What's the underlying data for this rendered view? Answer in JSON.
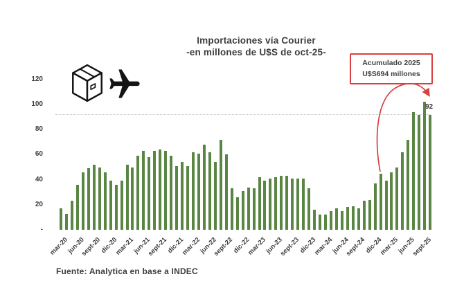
{
  "title": {
    "line1": "Importaciones vía Courier",
    "line2": "-en millones de U$S de oct-25-"
  },
  "annotation_box": {
    "line1": "Acumulado 2025",
    "line2": "U$S694 millones"
  },
  "bar_value_label": "92",
  "source": "Fuente: Analytica en base a INDEC",
  "icons": [
    "package-box-icon",
    "airplane-icon"
  ],
  "colors": {
    "bar": "#5a8644",
    "annotation_red": "#d64040",
    "text_dark": "#3d3d3d",
    "reference_line": "#c4c4c4"
  },
  "y_axis": {
    "labels": [
      "120",
      "100",
      "80",
      "60",
      "40",
      "20",
      "-"
    ],
    "values": [
      120,
      100,
      80,
      60,
      40,
      20,
      0
    ]
  },
  "chart_data": {
    "type": "bar",
    "title": "Importaciones vía Courier",
    "subtitle": "-en millones de U$S de oct-25-",
    "xlabel": "",
    "ylabel": "",
    "ylim": [
      0,
      120
    ],
    "grid": false,
    "legend": "none",
    "reference_line_y": 92,
    "bar_color": "#5a8644",
    "x_tick_labels": [
      "mar-20",
      "jun-20",
      "sept-20",
      "dic-20",
      "mar-21",
      "jun-21",
      "sept-21",
      "dic-21",
      "mar-22",
      "jun-22",
      "sept-22",
      "dic-22",
      "mar-23",
      "jun-23",
      "sept-23",
      "dic-23",
      "mar-24",
      "jun-24",
      "sept-24",
      "dic-24",
      "mar-25",
      "jun-25",
      "sept-25"
    ],
    "categories": [
      "mar-20",
      "abr-20",
      "may-20",
      "jun-20",
      "jul-20",
      "ago-20",
      "sept-20",
      "oct-20",
      "nov-20",
      "dic-20",
      "ene-21",
      "feb-21",
      "mar-21",
      "abr-21",
      "may-21",
      "jun-21",
      "jul-21",
      "ago-21",
      "sept-21",
      "oct-21",
      "nov-21",
      "dic-21",
      "ene-22",
      "feb-22",
      "mar-22",
      "abr-22",
      "may-22",
      "jun-22",
      "jul-22",
      "ago-22",
      "sept-22",
      "oct-22",
      "nov-22",
      "dic-22",
      "ene-23",
      "feb-23",
      "mar-23",
      "abr-23",
      "may-23",
      "jun-23",
      "jul-23",
      "ago-23",
      "sept-23",
      "oct-23",
      "nov-23",
      "dic-23",
      "ene-24",
      "feb-24",
      "mar-24",
      "abr-24",
      "may-24",
      "jun-24",
      "jul-24",
      "ago-24",
      "sept-24",
      "oct-24",
      "nov-24",
      "dic-24",
      "ene-25",
      "feb-25",
      "mar-25",
      "abr-25",
      "may-25",
      "jun-25",
      "jul-25",
      "ago-25",
      "sept-25",
      "oct-25"
    ],
    "values": [
      17,
      13,
      23,
      36,
      46,
      49,
      52,
      50,
      46,
      39,
      36,
      39,
      52,
      50,
      59,
      63,
      58,
      63,
      64,
      63,
      59,
      51,
      54,
      51,
      62,
      61,
      68,
      62,
      54,
      72,
      60,
      33,
      26,
      31,
      34,
      33,
      42,
      39,
      41,
      42,
      43,
      43,
      41,
      41,
      41,
      33,
      16,
      12,
      12,
      15,
      17,
      15,
      18,
      19,
      17,
      23,
      24,
      37,
      45,
      39,
      46,
      50,
      62,
      72,
      94,
      92,
      102,
      92
    ],
    "annotations": [
      {
        "type": "box-with-arrow",
        "text": "Acumulado 2025 U$S694 millones",
        "arrow_from": "ene-25",
        "arrow_to": "oct-25"
      },
      {
        "type": "data-label",
        "text": "92",
        "category": "oct-25"
      }
    ]
  }
}
